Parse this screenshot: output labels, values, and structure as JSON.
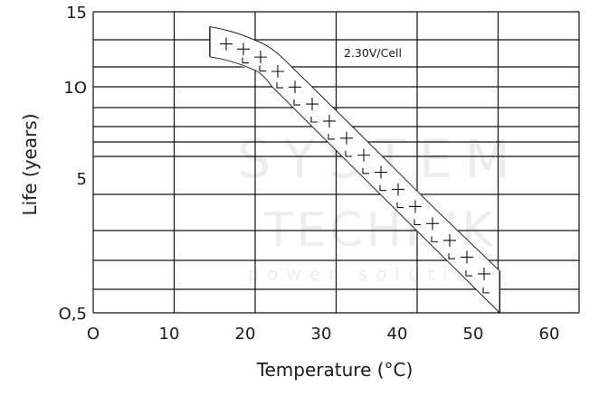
{
  "chart_data": {
    "type": "area",
    "xlabel": "Temperature (°C)",
    "ylabel": "Life (years)",
    "annotation": "2.30V/Cell",
    "x_ticks": [
      "O",
      "10",
      "20",
      "30",
      "40",
      "50",
      "60"
    ],
    "y_ticks": [
      {
        "value": 15,
        "label": "15"
      },
      {
        "value": 10,
        "label": "1O"
      },
      {
        "value": 5,
        "label": "5"
      },
      {
        "value": 0.5,
        "label": "O,5"
      }
    ],
    "xlim": [
      0,
      60
    ],
    "ylim": [
      0.5,
      15
    ],
    "grid": true,
    "band": {
      "upper": [
        [
          14.4,
          14.0
        ],
        [
          20,
          13.1
        ],
        [
          24,
          11.6
        ],
        [
          33.2,
          7.3
        ],
        [
          42.1,
          4.0
        ],
        [
          50.2,
          1.9
        ]
      ],
      "lower": [
        [
          14.4,
          12.0
        ],
        [
          20,
          11.1
        ],
        [
          22,
          10.06
        ],
        [
          33.2,
          5.1
        ],
        [
          42.1,
          2.67
        ],
        [
          50.2,
          0.5
        ]
      ]
    },
    "colors": {
      "line": "#111111",
      "band_fill": "#ffffff",
      "watermark": "#e6e6e6"
    }
  },
  "watermark": {
    "line1": "SYSTEM",
    "line2": "TECHNIK",
    "line3": "power solutions"
  }
}
